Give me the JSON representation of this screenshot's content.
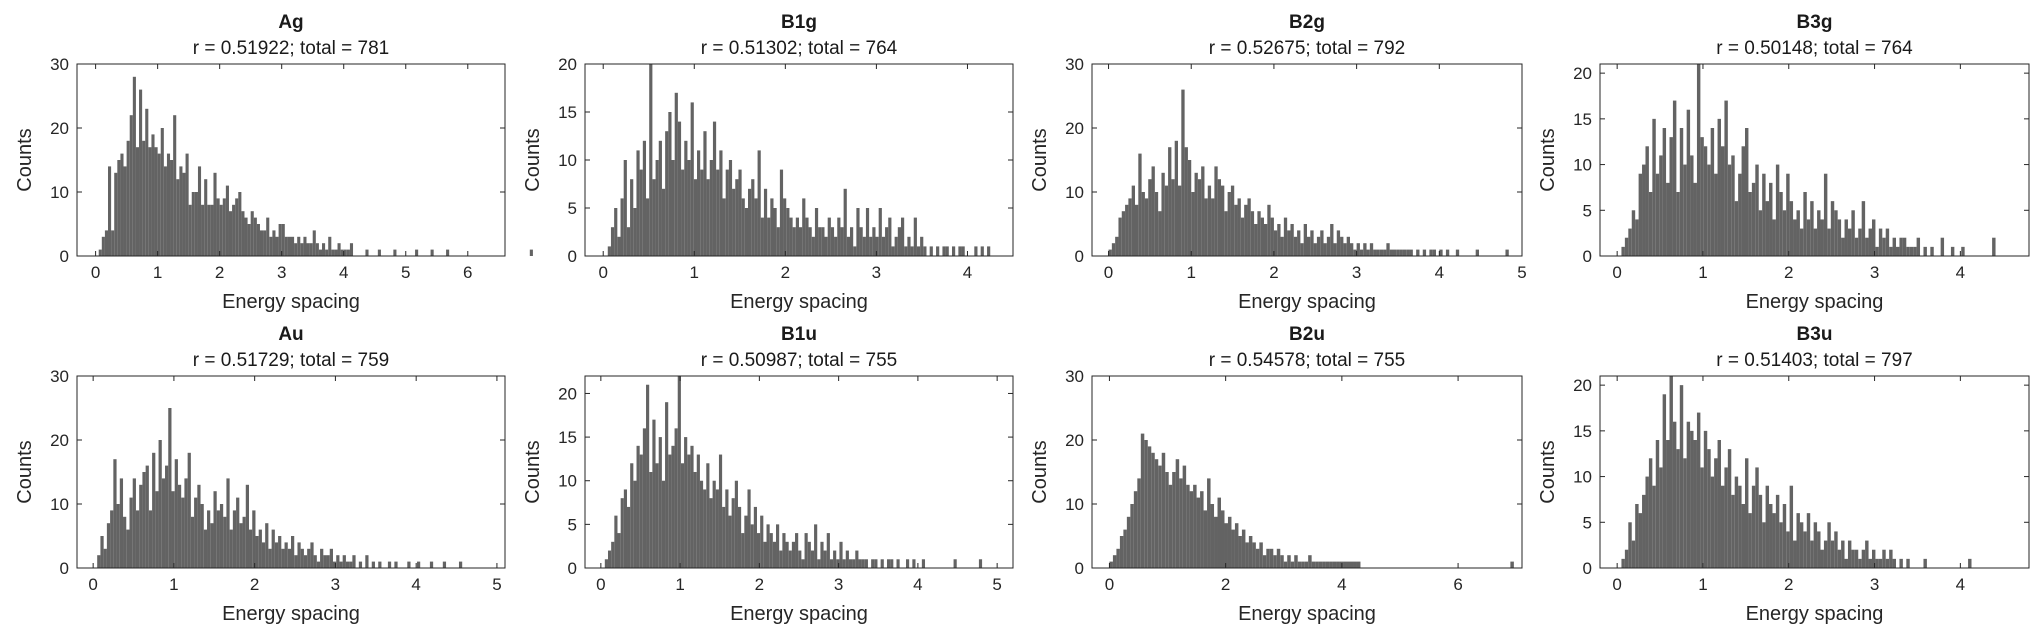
{
  "chart_data": [
    {
      "type": "bar",
      "title": "Ag",
      "subtitle": "r = 0.51922; total = 781",
      "xlabel": "Energy spacing",
      "ylabel": "Counts",
      "xlim": [
        -0.3,
        6.6
      ],
      "ylim": [
        0,
        30
      ],
      "xticks": [
        0,
        1,
        2,
        3,
        4,
        5,
        6
      ],
      "yticks": [
        0,
        10,
        20,
        30
      ],
      "bin_width": 0.05,
      "x_start": 0,
      "values": [
        0,
        1,
        3,
        4,
        14,
        4,
        13,
        15,
        16,
        14,
        18,
        22,
        28,
        17,
        26,
        18,
        23,
        17,
        19,
        17,
        16,
        20,
        14,
        16,
        15,
        22,
        12,
        14,
        13,
        16,
        8,
        10,
        10,
        14,
        8,
        12,
        8,
        8,
        13,
        9,
        8,
        9,
        11,
        7,
        8,
        9,
        10,
        7,
        6,
        5,
        7,
        6,
        5,
        4,
        4,
        6,
        3,
        4,
        3,
        5,
        5,
        3,
        3,
        3,
        2,
        3,
        2,
        3,
        2,
        2,
        4,
        2,
        1,
        2,
        1,
        3,
        1,
        1,
        2,
        1,
        1,
        1,
        2,
        0,
        0,
        0,
        0,
        1,
        0,
        0,
        0,
        1,
        0,
        0,
        0,
        0,
        1,
        0,
        0,
        0,
        0,
        0,
        0,
        1,
        0,
        0,
        0,
        0,
        1,
        0,
        0,
        0,
        0,
        1,
        0,
        0,
        0,
        0,
        0,
        0,
        0,
        0,
        0,
        0,
        0,
        0,
        0,
        0,
        0,
        0,
        0,
        0,
        0,
        0,
        0,
        0,
        0,
        0,
        0,
        0,
        1
      ]
    },
    {
      "type": "bar",
      "title": "B1g",
      "subtitle": "r = 0.51302; total = 764",
      "xlabel": "Energy spacing",
      "ylabel": "Counts",
      "xlim": [
        -0.2,
        4.5
      ],
      "ylim": [
        0,
        20
      ],
      "xticks": [
        0,
        1,
        2,
        3,
        4
      ],
      "yticks": [
        0,
        5,
        10,
        15,
        20
      ],
      "bin_width": 0.035,
      "x_start": 0.05,
      "values": [
        1,
        3,
        5,
        2,
        6,
        10,
        3,
        8,
        5,
        11,
        9,
        12,
        6,
        20,
        8,
        10,
        12,
        7,
        13,
        15,
        10,
        17,
        14,
        9,
        12,
        10,
        16,
        8,
        11,
        9,
        13,
        8,
        10,
        14,
        9,
        11,
        6,
        9,
        10,
        7,
        8,
        9,
        6,
        5,
        7,
        8,
        6,
        11,
        4,
        7,
        4,
        6,
        5,
        3,
        9,
        6,
        5,
        4,
        3,
        4,
        3,
        6,
        4,
        3,
        2,
        5,
        3,
        3,
        2,
        4,
        3,
        2,
        4,
        3,
        7,
        2,
        3,
        1,
        5,
        3,
        2,
        5,
        2,
        3,
        2,
        5,
        2,
        3,
        4,
        1,
        2,
        3,
        4,
        1,
        2,
        1,
        4,
        1,
        2,
        1,
        0,
        1,
        0,
        1,
        0,
        1,
        1,
        0,
        1,
        0,
        1,
        1,
        0,
        0,
        0,
        1,
        0,
        1,
        0,
        1
      ]
    },
    {
      "type": "bar",
      "title": "B2g",
      "subtitle": "r = 0.52675; total = 792",
      "xlabel": "Energy spacing",
      "ylabel": "Counts",
      "xlim": [
        -0.2,
        5.0
      ],
      "ylim": [
        0,
        30
      ],
      "xticks": [
        0,
        1,
        2,
        3,
        4,
        5
      ],
      "yticks": [
        0,
        10,
        20,
        30
      ],
      "bin_width": 0.04,
      "x_start": 0,
      "values": [
        1,
        2,
        3,
        6,
        7,
        8,
        9,
        11,
        8,
        16,
        10,
        9,
        12,
        14,
        10,
        7,
        13,
        11,
        17,
        12,
        18,
        11,
        26,
        17,
        15,
        10,
        13,
        12,
        14,
        9,
        11,
        9,
        14,
        12,
        11,
        7,
        10,
        11,
        8,
        9,
        6,
        8,
        9,
        7,
        5,
        7,
        6,
        5,
        8,
        6,
        4,
        5,
        3,
        6,
        4,
        5,
        3,
        4,
        2,
        5,
        3,
        4,
        2,
        3,
        4,
        2,
        3,
        5,
        2,
        4,
        3,
        2,
        3,
        2,
        1,
        2,
        1,
        2,
        1,
        2,
        1,
        1,
        1,
        1,
        2,
        1,
        1,
        1,
        1,
        1,
        1,
        1,
        0,
        1,
        0,
        1,
        0,
        1,
        1,
        0,
        1,
        0,
        1,
        0,
        0,
        1,
        0,
        0,
        0,
        0,
        0,
        1,
        0,
        0,
        0,
        0,
        0,
        0,
        0,
        0,
        1
      ]
    },
    {
      "type": "bar",
      "title": "B3g",
      "subtitle": "r = 0.50148; total = 764",
      "xlabel": "Energy spacing",
      "ylabel": "Counts",
      "xlim": [
        -0.2,
        4.8
      ],
      "ylim": [
        0,
        21
      ],
      "xticks": [
        0,
        1,
        2,
        3,
        4
      ],
      "yticks": [
        0,
        5,
        10,
        15,
        20
      ],
      "bin_width": 0.04,
      "x_start": 0.05,
      "values": [
        1,
        2,
        3,
        5,
        4,
        9,
        10,
        12,
        7,
        15,
        9,
        11,
        14,
        8,
        13,
        17,
        7,
        14,
        10,
        16,
        11,
        8,
        21,
        13,
        12,
        10,
        14,
        9,
        15,
        12,
        17,
        10,
        11,
        6,
        9,
        12,
        14,
        7,
        8,
        10,
        5,
        9,
        6,
        8,
        4,
        10,
        7,
        5,
        9,
        6,
        4,
        5,
        3,
        7,
        4,
        6,
        3,
        5,
        4,
        9,
        3,
        6,
        5,
        4,
        2,
        4,
        3,
        5,
        2,
        3,
        6,
        2,
        3,
        4,
        1,
        3,
        2,
        3,
        1,
        2,
        1,
        2,
        2,
        1,
        1,
        1,
        2,
        0,
        1,
        0,
        1,
        0,
        0,
        2,
        0,
        0,
        1,
        0,
        0,
        1,
        0,
        0,
        0,
        0,
        0,
        0,
        0,
        0,
        2
      ]
    },
    {
      "type": "bar",
      "title": "Au",
      "subtitle": "r = 0.51729; total = 759",
      "xlabel": "Energy spacing",
      "ylabel": "Counts",
      "xlim": [
        -0.2,
        5.1
      ],
      "ylim": [
        0,
        30
      ],
      "xticks": [
        0,
        1,
        2,
        3,
        4,
        5
      ],
      "yticks": [
        0,
        10,
        20,
        30
      ],
      "bin_width": 0.04,
      "x_start": 0.05,
      "values": [
        2,
        5,
        3,
        7,
        9,
        17,
        10,
        14,
        8,
        6,
        11,
        14,
        9,
        13,
        15,
        16,
        9,
        18,
        12,
        20,
        14,
        16,
        25,
        12,
        17,
        13,
        11,
        14,
        18,
        8,
        11,
        13,
        10,
        6,
        9,
        7,
        12,
        9,
        10,
        8,
        14,
        6,
        9,
        11,
        7,
        8,
        13,
        6,
        9,
        5,
        6,
        4,
        7,
        3,
        6,
        4,
        5,
        3,
        4,
        3,
        5,
        2,
        4,
        3,
        2,
        3,
        4,
        2,
        1,
        3,
        2,
        2,
        3,
        1,
        2,
        1,
        2,
        1,
        1,
        2,
        0,
        1,
        0,
        2,
        0,
        1,
        0,
        1,
        0,
        0,
        1,
        0,
        1,
        0,
        0,
        0,
        1,
        0,
        0,
        1,
        0,
        0,
        0,
        1,
        0,
        0,
        0,
        1,
        0,
        0,
        0,
        0,
        1
      ]
    },
    {
      "type": "bar",
      "title": "B1u",
      "subtitle": "r = 0.50987; total = 755",
      "xlabel": "Energy spacing",
      "ylabel": "Counts",
      "xlim": [
        -0.2,
        5.2
      ],
      "ylim": [
        0,
        22
      ],
      "xticks": [
        0,
        1,
        2,
        3,
        4,
        5
      ],
      "yticks": [
        0,
        5,
        10,
        15,
        20
      ],
      "bin_width": 0.04,
      "x_start": 0.05,
      "values": [
        1,
        2,
        3,
        6,
        4,
        8,
        9,
        7,
        12,
        10,
        14,
        13,
        16,
        21,
        11,
        17,
        12,
        15,
        10,
        19,
        13,
        14,
        16,
        22,
        12,
        15,
        13,
        14,
        11,
        13,
        10,
        9,
        12,
        8,
        10,
        9,
        13,
        7,
        9,
        6,
        8,
        10,
        7,
        4,
        6,
        9,
        5,
        7,
        4,
        6,
        3,
        5,
        4,
        3,
        5,
        2,
        4,
        3,
        2,
        3,
        4,
        2,
        1,
        4,
        3,
        2,
        5,
        1,
        3,
        2,
        4,
        1,
        2,
        1,
        3,
        1,
        2,
        1,
        1,
        2,
        1,
        1,
        1,
        0,
        1,
        1,
        0,
        1,
        0,
        1,
        1,
        0,
        1,
        0,
        0,
        1,
        0,
        1,
        0,
        0,
        1,
        0,
        0,
        0,
        0,
        0,
        0,
        0,
        0,
        0,
        1,
        0,
        0,
        0,
        0,
        0,
        0,
        0,
        1
      ]
    },
    {
      "type": "bar",
      "title": "B2u",
      "subtitle": "r = 0.54578; total = 755",
      "xlabel": "Energy spacing",
      "ylabel": "Counts",
      "xlim": [
        -0.3,
        7.1
      ],
      "ylim": [
        0,
        30
      ],
      "xticks": [
        0,
        2,
        4,
        6
      ],
      "yticks": [
        0,
        10,
        20,
        30
      ],
      "bin_width": 0.06,
      "x_start": 0,
      "values": [
        1,
        2,
        3,
        5,
        6,
        8,
        10,
        12,
        14,
        21,
        20,
        19,
        18,
        17,
        16,
        18,
        15,
        13,
        15,
        17,
        14,
        16,
        13,
        12,
        13,
        11,
        12,
        9,
        14,
        10,
        8,
        11,
        9,
        7,
        8,
        6,
        7,
        5,
        6,
        4,
        5,
        4,
        3,
        4,
        2,
        3,
        3,
        2,
        3,
        2,
        1,
        2,
        1,
        2,
        1,
        1,
        1,
        2,
        1,
        1,
        1,
        1,
        1,
        1,
        1,
        1,
        1,
        1,
        1,
        1,
        1,
        1,
        0,
        0,
        0,
        0,
        0,
        0,
        0,
        0,
        0,
        0,
        0,
        0,
        0,
        0,
        0,
        0,
        0,
        0,
        0,
        0,
        0,
        0,
        0,
        0,
        0,
        0,
        0,
        0,
        0,
        0,
        0,
        0,
        0,
        0,
        0,
        0,
        0,
        0,
        0,
        0,
        0,
        0,
        0,
        1
      ]
    },
    {
      "type": "bar",
      "title": "B3u",
      "subtitle": "r = 0.51403; total = 797",
      "xlabel": "Energy spacing",
      "ylabel": "Counts",
      "xlim": [
        -0.2,
        4.8
      ],
      "ylim": [
        0,
        21
      ],
      "xticks": [
        0,
        1,
        2,
        3,
        4
      ],
      "yticks": [
        0,
        5,
        10,
        15,
        20
      ],
      "bin_width": 0.04,
      "x_start": 0.05,
      "values": [
        1,
        2,
        5,
        3,
        7,
        6,
        8,
        10,
        12,
        9,
        14,
        11,
        19,
        14,
        21,
        16,
        13,
        20,
        12,
        16,
        15,
        14,
        17,
        11,
        15,
        13,
        10,
        12,
        14,
        9,
        11,
        13,
        8,
        10,
        9,
        7,
        12,
        6,
        9,
        11,
        8,
        5,
        9,
        7,
        6,
        8,
        5,
        7,
        4,
        9,
        3,
        6,
        5,
        4,
        6,
        3,
        5,
        4,
        2,
        3,
        5,
        3,
        4,
        2,
        3,
        1,
        3,
        2,
        2,
        1,
        2,
        3,
        1,
        2,
        1,
        1,
        2,
        1,
        2,
        1,
        0,
        1,
        0,
        1,
        0,
        0,
        0,
        0,
        1,
        0,
        0,
        0,
        0,
        0,
        0,
        0,
        0,
        0,
        0,
        0,
        0,
        1
      ]
    }
  ]
}
